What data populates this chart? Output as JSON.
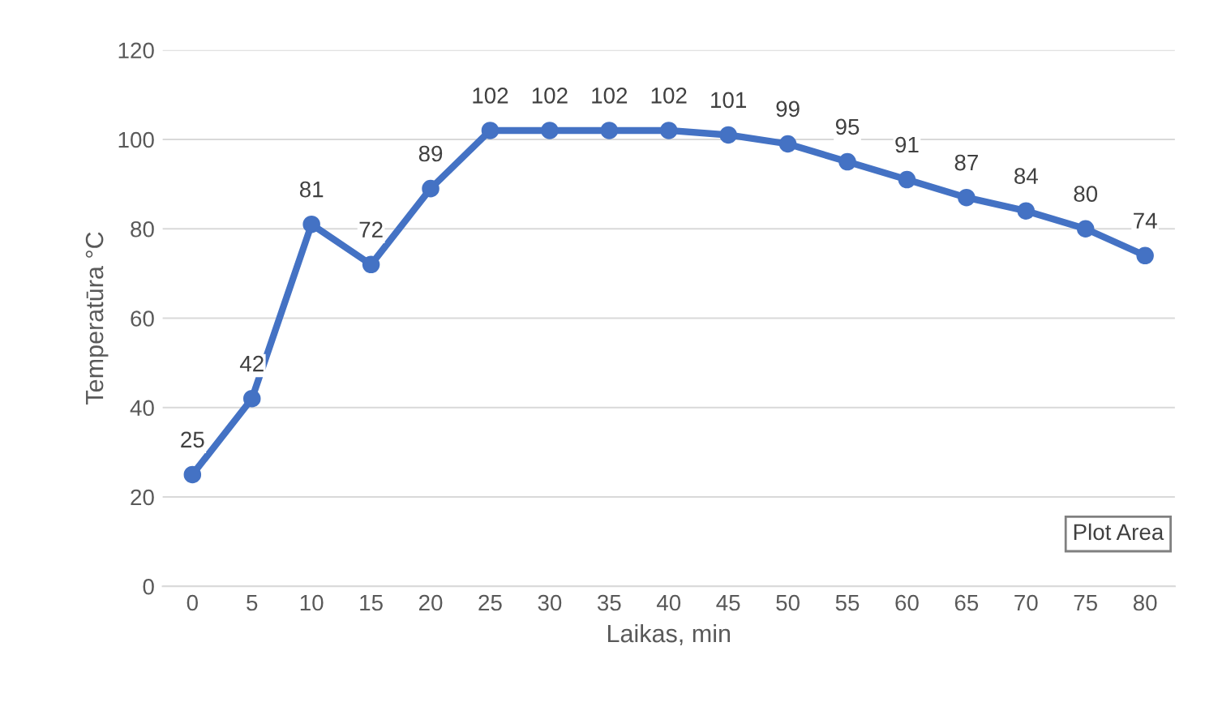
{
  "chart_data": {
    "type": "line",
    "xlabel": "Laikas, min",
    "ylabel": "Temperatūra °C",
    "categories": [
      "0",
      "5",
      "10",
      "15",
      "20",
      "25",
      "30",
      "35",
      "40",
      "45",
      "50",
      "55",
      "60",
      "65",
      "70",
      "75",
      "80"
    ],
    "series": [
      {
        "color": "#4472c4",
        "values": [
          25,
          42,
          81,
          72,
          89,
          102,
          102,
          102,
          102,
          101,
          99,
          95,
          91,
          87,
          84,
          80,
          74
        ]
      }
    ],
    "ylim": [
      0,
      120
    ],
    "yticks": [
      0,
      20,
      40,
      60,
      80,
      100,
      120
    ],
    "grid": "y",
    "data_labels": true,
    "marker": "circle",
    "line_style": "solid",
    "annotations": [
      "Plot Area"
    ]
  }
}
